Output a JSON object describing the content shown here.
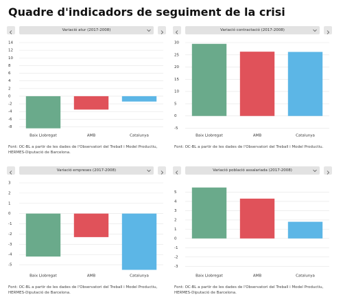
{
  "title": "Quadre d'indicadors de seguiment de la crisi",
  "chart_data": [
    {
      "type": "bar",
      "title": "Variació atur (2017-2008)",
      "categories": [
        "Baix Llobregat",
        "AMB",
        "Catalunya"
      ],
      "values": [
        -8.4,
        -3.5,
        -1.4
      ],
      "colors": [
        "#6aaa8b",
        "#e0525a",
        "#5cb6e6"
      ],
      "ylim": [
        -9,
        14
      ],
      "yticks": [
        -8,
        -6,
        -4,
        -2,
        0,
        2,
        4,
        6,
        8,
        10,
        12,
        14
      ],
      "grid": true,
      "source": "Font: OC-BL a partir de les dades de l'Observatori del Treball i Model Productiu, HERMES-Diputació de Barcelona."
    },
    {
      "type": "bar",
      "title": "Variació contractació (2017-2008)",
      "categories": [
        "Baix Llobregat",
        "AMB",
        "Catalunya"
      ],
      "values": [
        29.5,
        26.3,
        26.2
      ],
      "colors": [
        "#6aaa8b",
        "#e0525a",
        "#5cb6e6"
      ],
      "ylim": [
        -6,
        30
      ],
      "yticks": [
        -5,
        0,
        5,
        10,
        15,
        20,
        25,
        30
      ],
      "grid": true,
      "source": "Font: OC-BL a partir de les dades de l'Observatori del Treball i Model Productiu."
    },
    {
      "type": "bar",
      "title": "Variació empreses (2017-2008)",
      "categories": [
        "Baix Llobregat",
        "AMB",
        "Catalunya"
      ],
      "values": [
        -4.2,
        -2.3,
        -5.5
      ],
      "colors": [
        "#6aaa8b",
        "#e0525a",
        "#5cb6e6"
      ],
      "ylim": [
        -5.6,
        3
      ],
      "yticks": [
        -5,
        -4,
        -3,
        -2,
        -1,
        0,
        1,
        2,
        3
      ],
      "grid": true,
      "source": "Font: OC-BL a partir de les dades de l'Observatori del Treball i Model Productiu, HERMES-Diputació de Barcelona."
    },
    {
      "type": "bar",
      "title": "Variació població assalariada (2017-2008)",
      "categories": [
        "Baix Llobregat",
        "AMB",
        "Catalunya"
      ],
      "values": [
        5.5,
        4.3,
        1.8
      ],
      "colors": [
        "#6aaa8b",
        "#e0525a",
        "#5cb6e6"
      ],
      "ylim": [
        -3.5,
        6
      ],
      "yticks": [
        -3,
        -2,
        -1,
        0,
        1,
        2,
        3,
        4,
        5
      ],
      "grid": true,
      "source": "Font: OC-BL a partir de les dades de l'Observatori del Treball i Model Productiu, HERMES-Diputació de Barcelona."
    }
  ]
}
